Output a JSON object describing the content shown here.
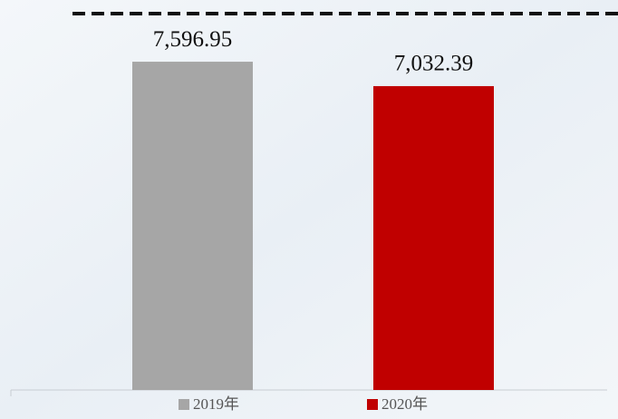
{
  "chart_data": {
    "type": "bar",
    "categories": [
      null
    ],
    "series": [
      {
        "name": "2019年",
        "color": "#a6a6a6",
        "values": [
          7596.95
        ],
        "value_labels": [
          "7,596.95"
        ]
      },
      {
        "name": "2020年",
        "color": "#c00000",
        "values": [
          7032.39
        ],
        "value_labels": [
          "7,032.39"
        ]
      }
    ],
    "ylim": [
      0,
      8700
    ],
    "legend": "bottom"
  }
}
